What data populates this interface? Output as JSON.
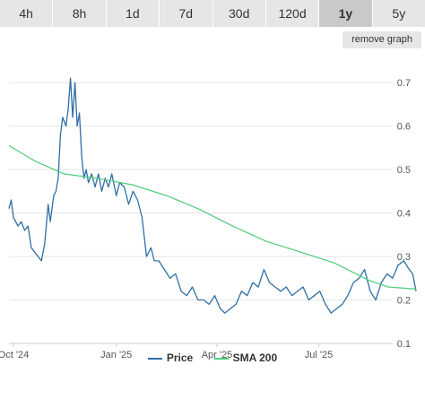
{
  "tabs": [
    {
      "label": "4h",
      "active": false
    },
    {
      "label": "8h",
      "active": false
    },
    {
      "label": "1d",
      "active": false
    },
    {
      "label": "7d",
      "active": false
    },
    {
      "label": "30d",
      "active": false
    },
    {
      "label": "120d",
      "active": false
    },
    {
      "label": "1y",
      "active": true
    },
    {
      "label": "5y",
      "active": false
    }
  ],
  "remove_graph_label": "remove graph",
  "colors": {
    "price": "#2f6fa6",
    "sma": "#4ccc7a",
    "grid": "#e6e6e6"
  },
  "chart_data": {
    "type": "line",
    "x_ticks": [
      "Oct '24",
      "Jan '25",
      "Apr '25",
      "Jul '25"
    ],
    "x_range": [
      "2024-09-27",
      "2025-09-26"
    ],
    "y_ticks": [
      0.1,
      0.2,
      0.3,
      0.4,
      0.5,
      0.6,
      0.7
    ],
    "ylim": [
      0.1,
      0.76
    ],
    "grid": true,
    "legend_position": "bottom",
    "series": [
      {
        "name": "Price",
        "x": [
          "2024-09-27",
          "2024-09-29",
          "2024-10-01",
          "2024-10-03",
          "2024-10-05",
          "2024-10-08",
          "2024-10-11",
          "2024-10-14",
          "2024-10-17",
          "2024-10-20",
          "2024-10-23",
          "2024-10-26",
          "2024-10-29",
          "2024-11-01",
          "2024-11-03",
          "2024-11-06",
          "2024-11-08",
          "2024-11-10",
          "2024-11-12",
          "2024-11-14",
          "2024-11-17",
          "2024-11-19",
          "2024-11-21",
          "2024-11-23",
          "2024-11-25",
          "2024-11-27",
          "2024-11-29",
          "2024-12-01",
          "2024-12-03",
          "2024-12-05",
          "2024-12-07",
          "2024-12-10",
          "2024-12-13",
          "2024-12-16",
          "2024-12-19",
          "2024-12-22",
          "2024-12-25",
          "2024-12-28",
          "2025-01-01",
          "2025-01-04",
          "2025-01-08",
          "2025-01-12",
          "2025-01-16",
          "2025-01-20",
          "2025-01-24",
          "2025-01-28",
          "2025-02-01",
          "2025-02-04",
          "2025-02-08",
          "2025-02-13",
          "2025-02-18",
          "2025-02-23",
          "2025-02-28",
          "2025-03-05",
          "2025-03-10",
          "2025-03-15",
          "2025-03-20",
          "2025-03-25",
          "2025-03-30",
          "2025-04-04",
          "2025-04-08",
          "2025-04-13",
          "2025-04-18",
          "2025-04-23",
          "2025-04-28",
          "2025-05-03",
          "2025-05-08",
          "2025-05-13",
          "2025-05-18",
          "2025-05-23",
          "2025-05-28",
          "2025-06-02",
          "2025-06-07",
          "2025-06-12",
          "2025-06-17",
          "2025-06-22",
          "2025-06-27",
          "2025-07-02",
          "2025-07-07",
          "2025-07-12",
          "2025-07-17",
          "2025-07-22",
          "2025-07-27",
          "2025-08-01",
          "2025-08-06",
          "2025-08-11",
          "2025-08-16",
          "2025-08-21",
          "2025-08-26",
          "2025-08-31",
          "2025-09-05",
          "2025-09-10",
          "2025-09-15",
          "2025-09-20",
          "2025-09-23",
          "2025-09-26"
        ],
        "values": [
          0.41,
          0.43,
          0.39,
          0.38,
          0.37,
          0.38,
          0.36,
          0.37,
          0.32,
          0.31,
          0.3,
          0.29,
          0.33,
          0.42,
          0.38,
          0.44,
          0.45,
          0.48,
          0.58,
          0.62,
          0.6,
          0.64,
          0.71,
          0.62,
          0.7,
          0.6,
          0.63,
          0.53,
          0.48,
          0.5,
          0.47,
          0.49,
          0.46,
          0.49,
          0.45,
          0.48,
          0.46,
          0.49,
          0.44,
          0.47,
          0.46,
          0.42,
          0.45,
          0.43,
          0.39,
          0.3,
          0.32,
          0.29,
          0.29,
          0.27,
          0.25,
          0.26,
          0.22,
          0.21,
          0.23,
          0.2,
          0.2,
          0.19,
          0.21,
          0.18,
          0.17,
          0.18,
          0.19,
          0.22,
          0.21,
          0.24,
          0.23,
          0.27,
          0.24,
          0.23,
          0.22,
          0.23,
          0.21,
          0.22,
          0.23,
          0.2,
          0.21,
          0.22,
          0.19,
          0.17,
          0.18,
          0.19,
          0.21,
          0.24,
          0.25,
          0.27,
          0.22,
          0.2,
          0.24,
          0.26,
          0.25,
          0.28,
          0.29,
          0.27,
          0.26,
          0.22
        ]
      },
      {
        "name": "SMA 200",
        "x": [
          "2024-09-27",
          "2024-10-20",
          "2024-11-15",
          "2024-12-15",
          "2025-01-15",
          "2025-02-15",
          "2025-03-15",
          "2025-04-15",
          "2025-05-15",
          "2025-06-15",
          "2025-07-15",
          "2025-08-15",
          "2025-09-01",
          "2025-09-26"
        ],
        "values": [
          0.555,
          0.52,
          0.49,
          0.48,
          0.465,
          0.44,
          0.41,
          0.37,
          0.335,
          0.31,
          0.285,
          0.245,
          0.23,
          0.225
        ]
      }
    ]
  }
}
